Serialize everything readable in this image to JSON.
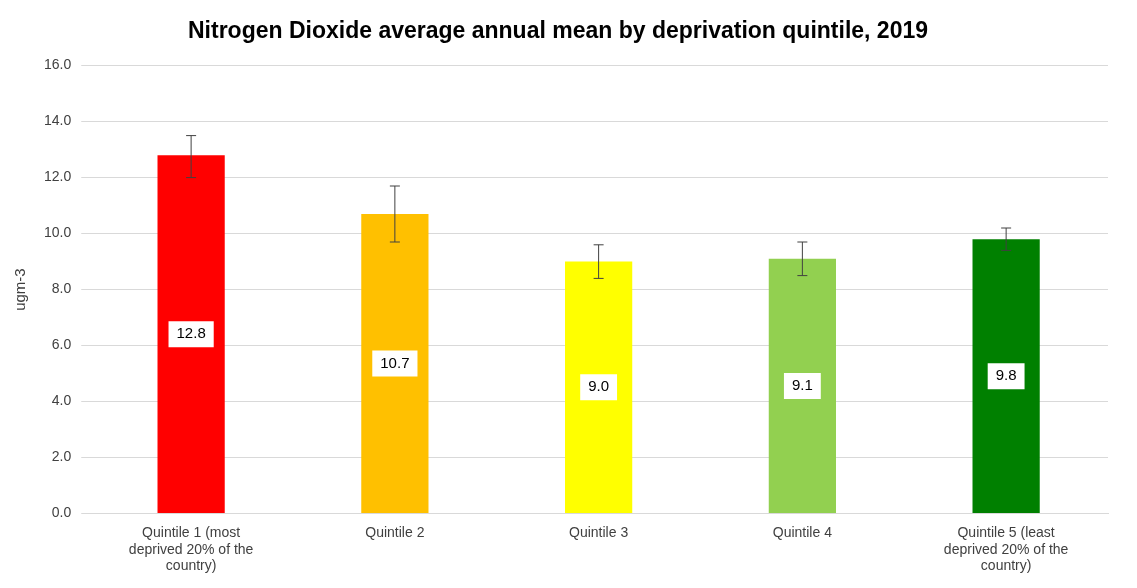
{
  "chart_data": {
    "type": "bar",
    "title": "Nitrogen Dioxide average annual mean by deprivation quintile, 2019",
    "ylabel": "ugm-3",
    "categories": [
      "Quintile 1 (most deprived 20% of the country)",
      "Quintile 2",
      "Quintile 3",
      "Quintile 4",
      "Quintile 5 (least deprived 20% of the country)"
    ],
    "values": [
      12.8,
      10.7,
      9.0,
      9.1,
      9.8
    ],
    "value_labels": [
      "12.8",
      "10.7",
      "9.0",
      "9.1",
      "9.8"
    ],
    "colors": [
      "#ff0000",
      "#ffc000",
      "#ffff00",
      "#92d050",
      "#008000"
    ],
    "errors": [
      [
        12.0,
        13.5
      ],
      [
        9.7,
        11.7
      ],
      [
        8.4,
        9.6
      ],
      [
        8.5,
        9.7
      ],
      [
        9.4,
        10.2
      ]
    ],
    "ylim": [
      0,
      16
    ],
    "yticks": [
      {
        "value": 0,
        "label": "0.0"
      },
      {
        "value": 2,
        "label": "2.0"
      },
      {
        "value": 4,
        "label": "4.0"
      },
      {
        "value": 6,
        "label": "6.0"
      },
      {
        "value": 8,
        "label": "8.0"
      },
      {
        "value": 10,
        "label": "10.0"
      },
      {
        "value": 12,
        "label": "12.0"
      },
      {
        "value": 14,
        "label": "14.0"
      },
      {
        "value": 16,
        "label": "16.0"
      }
    ],
    "grid": "y",
    "legend": false
  }
}
